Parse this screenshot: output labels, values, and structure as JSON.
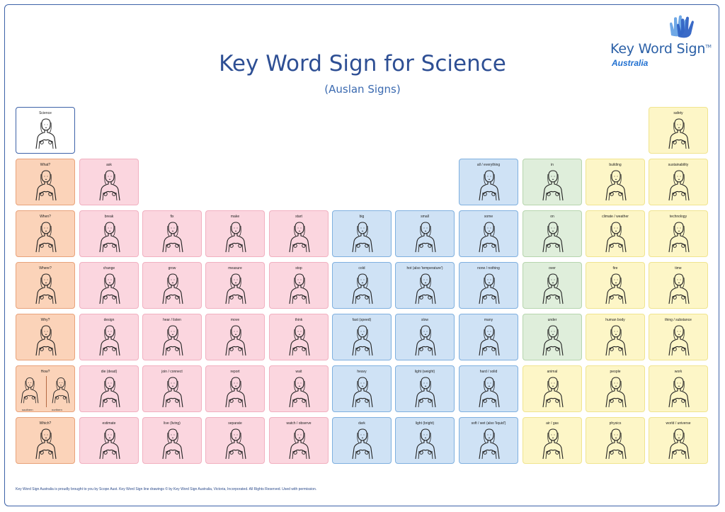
{
  "header": {
    "title": "Key Word Sign for Science",
    "subtitle": "(Auslan Signs)"
  },
  "logo": {
    "name": "Key Word Sign",
    "trademark": "TM",
    "region": "Australia",
    "icon": "hands-icon"
  },
  "colors": {
    "frame": "#3d62a8",
    "title": "#2e4f94",
    "orange": "#fbd3b9",
    "pink": "#fbd6df",
    "blue": "#cfe2f5",
    "green": "#dfeedb",
    "yellow": "#fdf6c7"
  },
  "tiles": [
    {
      "label": "Science",
      "col": 0,
      "row": 0,
      "color": "science"
    },
    {
      "label": "safety",
      "col": 10,
      "row": 0,
      "color": "yellow"
    },
    {
      "label": "What?",
      "col": 0,
      "row": 1,
      "color": "orange"
    },
    {
      "label": "ask",
      "col": 1,
      "row": 1,
      "color": "pink"
    },
    {
      "label": "all / everything",
      "col": 7,
      "row": 1,
      "color": "blue"
    },
    {
      "label": "in",
      "col": 8,
      "row": 1,
      "color": "green"
    },
    {
      "label": "building",
      "col": 9,
      "row": 1,
      "color": "yellow"
    },
    {
      "label": "sustainability",
      "col": 10,
      "row": 1,
      "color": "yellow"
    },
    {
      "label": "When?",
      "col": 0,
      "row": 2,
      "color": "orange"
    },
    {
      "label": "break",
      "col": 1,
      "row": 2,
      "color": "pink"
    },
    {
      "label": "fix",
      "col": 2,
      "row": 2,
      "color": "pink"
    },
    {
      "label": "make",
      "col": 3,
      "row": 2,
      "color": "pink"
    },
    {
      "label": "start",
      "col": 4,
      "row": 2,
      "color": "pink"
    },
    {
      "label": "big",
      "col": 5,
      "row": 2,
      "color": "blue"
    },
    {
      "label": "small",
      "col": 6,
      "row": 2,
      "color": "blue"
    },
    {
      "label": "some",
      "col": 7,
      "row": 2,
      "color": "blue"
    },
    {
      "label": "on",
      "col": 8,
      "row": 2,
      "color": "green"
    },
    {
      "label": "climate / weather",
      "col": 9,
      "row": 2,
      "color": "yellow"
    },
    {
      "label": "technology",
      "col": 10,
      "row": 2,
      "color": "yellow"
    },
    {
      "label": "Where?",
      "col": 0,
      "row": 3,
      "color": "orange"
    },
    {
      "label": "change",
      "col": 1,
      "row": 3,
      "color": "pink"
    },
    {
      "label": "grow",
      "col": 2,
      "row": 3,
      "color": "pink"
    },
    {
      "label": "measure",
      "col": 3,
      "row": 3,
      "color": "pink"
    },
    {
      "label": "stop",
      "col": 4,
      "row": 3,
      "color": "pink"
    },
    {
      "label": "cold",
      "col": 5,
      "row": 3,
      "color": "blue"
    },
    {
      "label": "hot (also 'temperature')",
      "col": 6,
      "row": 3,
      "color": "blue"
    },
    {
      "label": "none / nothing",
      "col": 7,
      "row": 3,
      "color": "blue"
    },
    {
      "label": "over",
      "col": 8,
      "row": 3,
      "color": "green"
    },
    {
      "label": "fire",
      "col": 9,
      "row": 3,
      "color": "yellow"
    },
    {
      "label": "time",
      "col": 10,
      "row": 3,
      "color": "yellow"
    },
    {
      "label": "Why?",
      "col": 0,
      "row": 4,
      "color": "orange"
    },
    {
      "label": "design",
      "col": 1,
      "row": 4,
      "color": "pink"
    },
    {
      "label": "hear / listen",
      "col": 2,
      "row": 4,
      "color": "pink"
    },
    {
      "label": "move",
      "col": 3,
      "row": 4,
      "color": "pink"
    },
    {
      "label": "think",
      "col": 4,
      "row": 4,
      "color": "pink"
    },
    {
      "label": "fast (speed)",
      "col": 5,
      "row": 4,
      "color": "blue"
    },
    {
      "label": "slow",
      "col": 6,
      "row": 4,
      "color": "blue"
    },
    {
      "label": "many",
      "col": 7,
      "row": 4,
      "color": "blue"
    },
    {
      "label": "under",
      "col": 8,
      "row": 4,
      "color": "green"
    },
    {
      "label": "human body",
      "col": 9,
      "row": 4,
      "color": "yellow"
    },
    {
      "label": "thing / substance",
      "col": 10,
      "row": 4,
      "color": "yellow"
    },
    {
      "label": "How?",
      "col": 0,
      "row": 5,
      "color": "orange",
      "captions": [
        "southern",
        "northern"
      ]
    },
    {
      "label": "die (dead)",
      "col": 1,
      "row": 5,
      "color": "pink"
    },
    {
      "label": "join / connect",
      "col": 2,
      "row": 5,
      "color": "pink"
    },
    {
      "label": "report",
      "col": 3,
      "row": 5,
      "color": "pink"
    },
    {
      "label": "wait",
      "col": 4,
      "row": 5,
      "color": "pink"
    },
    {
      "label": "heavy",
      "col": 5,
      "row": 5,
      "color": "blue"
    },
    {
      "label": "light (weight)",
      "col": 6,
      "row": 5,
      "color": "blue"
    },
    {
      "label": "hard / solid",
      "col": 7,
      "row": 5,
      "color": "blue"
    },
    {
      "label": "animal",
      "col": 8,
      "row": 5,
      "color": "yellow"
    },
    {
      "label": "people",
      "col": 9,
      "row": 5,
      "color": "yellow"
    },
    {
      "label": "work",
      "col": 10,
      "row": 5,
      "color": "yellow"
    },
    {
      "label": "Which?",
      "col": 0,
      "row": 6,
      "color": "orange"
    },
    {
      "label": "estimate",
      "col": 1,
      "row": 6,
      "color": "pink"
    },
    {
      "label": "live (living)",
      "col": 2,
      "row": 6,
      "color": "pink"
    },
    {
      "label": "separate",
      "col": 3,
      "row": 6,
      "color": "pink"
    },
    {
      "label": "watch / observe",
      "col": 4,
      "row": 6,
      "color": "pink"
    },
    {
      "label": "dark",
      "col": 5,
      "row": 6,
      "color": "blue"
    },
    {
      "label": "light (bright)",
      "col": 6,
      "row": 6,
      "color": "blue"
    },
    {
      "label": "soft / wet (also 'liquid')",
      "col": 7,
      "row": 6,
      "color": "blue"
    },
    {
      "label": "air / gas",
      "col": 8,
      "row": 6,
      "color": "yellow"
    },
    {
      "label": "physics",
      "col": 9,
      "row": 6,
      "color": "yellow"
    },
    {
      "label": "world / universe",
      "col": 10,
      "row": 6,
      "color": "yellow"
    }
  ],
  "footer": "Key Word Sign Australia is proudly brought to you by Scope Aust. Key Word Sign line drawings © by Key Word Sign Australia, Victoria, Incorporated. All Rights Reserved. Used with permission."
}
